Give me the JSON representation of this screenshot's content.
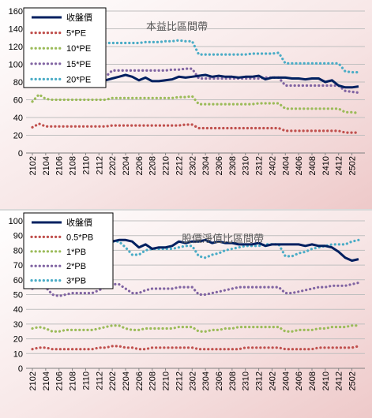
{
  "chart_data": [
    {
      "type": "line",
      "title": "本益比區間帶",
      "ylim": [
        0,
        160
      ],
      "yticks": [
        0,
        20,
        40,
        60,
        80,
        100,
        120,
        140,
        160
      ],
      "x_tick_labels": [
        "2102",
        "2104",
        "2106",
        "2108",
        "2110",
        "2112",
        "2202",
        "2204",
        "2206",
        "2208",
        "2210",
        "2212",
        "2302",
        "2304",
        "2306",
        "2308",
        "2310",
        "2312",
        "2402",
        "2404",
        "2406",
        "2408",
        "2410",
        "2412",
        "2502"
      ],
      "grid": true,
      "legend_position": "top-left",
      "series": [
        {
          "name": "收盤價",
          "color": "#002060",
          "style": "solid",
          "values": [
            76,
            83,
            84,
            82,
            85,
            83,
            86,
            85,
            84,
            83,
            83,
            82,
            84,
            86,
            88,
            86,
            82,
            85,
            81,
            81,
            82,
            83,
            86,
            85,
            86,
            87,
            88,
            86,
            87,
            86,
            86,
            85,
            86,
            86,
            87,
            83,
            85,
            85,
            85,
            84,
            84,
            83,
            84,
            84,
            80,
            82,
            76,
            74,
            74,
            75
          ]
        },
        {
          "name": "5*PE",
          "color": "#C0504D",
          "style": "dotted",
          "values": [
            29,
            33,
            30,
            30,
            30,
            30,
            30,
            30,
            30,
            30,
            30,
            30,
            31,
            31,
            31,
            31,
            31,
            31,
            31,
            31,
            31,
            31,
            31,
            32,
            32,
            28,
            28,
            28,
            28,
            28,
            28,
            28,
            28,
            28,
            28,
            28,
            28,
            28,
            25,
            25,
            25,
            25,
            25,
            25,
            25,
            25,
            25,
            23,
            23,
            23
          ]
        },
        {
          "name": "10*PE",
          "color": "#9BBB59",
          "style": "dotted",
          "values": [
            58,
            66,
            61,
            60,
            60,
            60,
            60,
            60,
            60,
            60,
            60,
            60,
            62,
            62,
            62,
            62,
            62,
            62,
            62,
            62,
            62,
            62,
            63,
            63,
            64,
            55,
            55,
            55,
            55,
            55,
            55,
            55,
            55,
            55,
            56,
            56,
            56,
            56,
            50,
            50,
            50,
            50,
            50,
            50,
            50,
            50,
            50,
            46,
            46,
            45
          ]
        },
        {
          "name": "15*PE",
          "color": "#8064A2",
          "style": "dotted",
          "values": [
            86,
            86,
            86,
            86,
            86,
            86,
            86,
            86,
            86,
            86,
            86,
            86,
            93,
            93,
            93,
            93,
            93,
            93,
            93,
            93,
            93,
            94,
            94,
            95,
            95,
            84,
            84,
            84,
            84,
            84,
            84,
            84,
            84,
            84,
            84,
            85,
            85,
            85,
            76,
            76,
            76,
            76,
            76,
            76,
            76,
            76,
            76,
            70,
            69,
            68
          ]
        },
        {
          "name": "20*PE",
          "color": "#4BACC6",
          "style": "dotted",
          "values": [
            115,
            115,
            115,
            115,
            115,
            115,
            115,
            115,
            124,
            124,
            124,
            124,
            124,
            124,
            124,
            124,
            124,
            125,
            125,
            125,
            126,
            126,
            127,
            126,
            126,
            111,
            111,
            111,
            111,
            111,
            111,
            111,
            111,
            112,
            112,
            112,
            112,
            113,
            101,
            101,
            101,
            101,
            101,
            101,
            101,
            101,
            101,
            92,
            91,
            91
          ]
        }
      ]
    },
    {
      "type": "line",
      "title": "股價淨值比區間帶",
      "ylim": [
        0,
        100
      ],
      "yticks": [
        0,
        10,
        20,
        30,
        40,
        50,
        60,
        70,
        80,
        90,
        100
      ],
      "x_tick_labels": [
        "2102",
        "2104",
        "2106",
        "2108",
        "2110",
        "2112",
        "2202",
        "2204",
        "2206",
        "2208",
        "2210",
        "2212",
        "2302",
        "2304",
        "2306",
        "2308",
        "2310",
        "2312",
        "2402",
        "2404",
        "2406",
        "2408",
        "2410",
        "2412",
        "2502"
      ],
      "grid": true,
      "legend_position": "top-left",
      "series": [
        {
          "name": "收盤價",
          "color": "#002060",
          "style": "solid",
          "values": [
            78,
            83,
            85,
            84,
            84,
            84,
            85,
            86,
            86,
            86,
            85,
            85,
            86,
            87,
            87,
            86,
            82,
            84,
            81,
            82,
            82,
            83,
            86,
            85,
            86,
            86,
            87,
            85,
            86,
            85,
            85,
            84,
            84,
            84,
            85,
            83,
            84,
            84,
            84,
            84,
            84,
            83,
            84,
            83,
            83,
            82,
            79,
            75,
            73,
            74
          ]
        },
        {
          "name": "0.5*PB",
          "color": "#C0504D",
          "style": "dotted",
          "values": [
            13,
            14,
            14,
            13,
            13,
            13,
            13,
            13,
            13,
            13,
            14,
            14,
            15,
            15,
            14,
            14,
            13,
            13,
            14,
            14,
            14,
            14,
            14,
            14,
            14,
            13,
            13,
            13,
            13,
            13,
            13,
            13,
            14,
            14,
            14,
            14,
            14,
            14,
            13,
            13,
            13,
            13,
            13,
            14,
            14,
            14,
            14,
            14,
            14,
            15
          ]
        },
        {
          "name": "1*PB",
          "color": "#9BBB59",
          "style": "dotted",
          "values": [
            27,
            28,
            27,
            25,
            25,
            26,
            26,
            26,
            26,
            26,
            27,
            28,
            29,
            29,
            27,
            26,
            26,
            27,
            27,
            27,
            27,
            27,
            28,
            28,
            28,
            25,
            25,
            26,
            26,
            27,
            27,
            28,
            28,
            28,
            28,
            28,
            28,
            28,
            25,
            25,
            26,
            26,
            26,
            27,
            27,
            28,
            28,
            28,
            29,
            29
          ]
        },
        {
          "name": "2*PB",
          "color": "#8064A2",
          "style": "dotted",
          "values": [
            54,
            55,
            55,
            50,
            49,
            50,
            51,
            51,
            51,
            51,
            53,
            55,
            57,
            57,
            54,
            51,
            51,
            53,
            54,
            54,
            54,
            54,
            55,
            55,
            55,
            50,
            50,
            51,
            52,
            53,
            54,
            55,
            55,
            55,
            55,
            55,
            55,
            55,
            51,
            51,
            52,
            53,
            54,
            55,
            55,
            56,
            56,
            56,
            57,
            58
          ]
        },
        {
          "name": "3*PB",
          "color": "#4BACC6",
          "style": "dotted",
          "values": [
            82,
            83,
            82,
            75,
            73,
            75,
            76,
            77,
            77,
            77,
            80,
            83,
            86,
            86,
            82,
            77,
            77,
            80,
            81,
            81,
            81,
            81,
            82,
            83,
            83,
            76,
            75,
            77,
            78,
            80,
            81,
            82,
            83,
            83,
            83,
            84,
            84,
            84,
            76,
            76,
            78,
            79,
            81,
            82,
            83,
            84,
            84,
            84,
            86,
            87
          ]
        }
      ]
    }
  ]
}
